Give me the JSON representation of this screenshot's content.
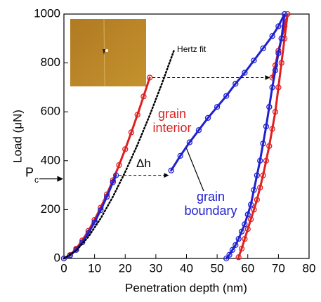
{
  "chart_data": {
    "type": "line",
    "xlabel": "Penetration depth (nm)",
    "ylabel": "Load (μN)",
    "xlim": [
      0,
      80
    ],
    "ylim": [
      0,
      1000
    ],
    "xticks": [
      0,
      10,
      20,
      30,
      40,
      50,
      60,
      70,
      80
    ],
    "yticks": [
      0,
      200,
      400,
      600,
      800,
      1000
    ],
    "series": [
      {
        "name": "grain interior",
        "color": "#e02020",
        "x": [
          0,
          2,
          4,
          6,
          8,
          10,
          12,
          14,
          16,
          18,
          20,
          22,
          24,
          26,
          28,
          null,
          68,
          69,
          70,
          71,
          72,
          73,
          72,
          71,
          70,
          69,
          68,
          67,
          66,
          65,
          64,
          63,
          62,
          61,
          60,
          59,
          58,
          57
        ],
        "values": [
          0,
          14,
          40,
          74,
          113,
          158,
          208,
          262,
          320,
          382,
          447,
          516,
          588,
          663,
          740,
          null,
          740,
          790,
          850,
          900,
          950,
          1000,
          900,
          800,
          700,
          600,
          530,
          460,
          400,
          340,
          290,
          240,
          200,
          160,
          120,
          80,
          40,
          5
        ]
      },
      {
        "name": "grain boundary",
        "color": "#2020d0",
        "x": [
          0,
          2,
          4,
          6,
          8,
          10,
          12,
          14,
          16,
          17,
          null,
          35,
          38,
          41,
          44,
          47,
          50,
          53,
          56,
          59,
          62,
          65,
          68,
          70,
          72,
          71,
          70,
          69,
          68,
          67,
          66,
          65,
          64,
          63,
          62,
          61,
          60,
          59,
          58,
          57,
          56,
          55,
          54,
          53
        ],
        "values": [
          0,
          12,
          35,
          66,
          104,
          148,
          198,
          252,
          312,
          340,
          null,
          360,
          420,
          475,
          525,
          575,
          620,
          665,
          715,
          760,
          810,
          860,
          910,
          950,
          1000,
          900,
          840,
          770,
          700,
          620,
          540,
          470,
          400,
          340,
          280,
          220,
          180,
          140,
          110,
          80,
          55,
          35,
          15,
          0
        ]
      },
      {
        "name": "Hertz fit",
        "color": "#000000",
        "style": "dotted",
        "x": [
          0,
          4,
          8,
          12,
          16,
          20,
          24,
          28,
          32,
          36
        ],
        "values": [
          0,
          32,
          89,
          164,
          253,
          354,
          465,
          586,
          716,
          854
        ]
      }
    ],
    "annotations": [
      "Δh",
      "P",
      "c"
    ]
  }
}
